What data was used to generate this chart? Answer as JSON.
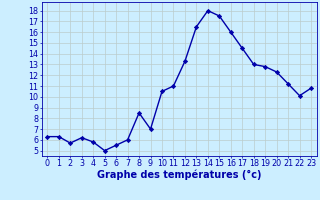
{
  "x": [
    0,
    1,
    2,
    3,
    4,
    5,
    6,
    7,
    8,
    9,
    10,
    11,
    12,
    13,
    14,
    15,
    16,
    17,
    18,
    19,
    20,
    21,
    22,
    23
  ],
  "y": [
    6.3,
    6.3,
    5.7,
    6.2,
    5.8,
    5.0,
    5.5,
    6.0,
    8.5,
    7.0,
    10.5,
    11.0,
    13.3,
    16.5,
    18.0,
    17.5,
    16.0,
    14.5,
    13.0,
    12.8,
    12.3,
    11.2,
    10.1,
    10.8
  ],
  "line_color": "#0000AA",
  "marker": "D",
  "marker_size": 2.2,
  "bg_color": "#cceeff",
  "grid_color": "#bbcccc",
  "xlabel": "Graphe des températures (°c)",
  "xlabel_color": "#0000AA",
  "xlabel_fontsize": 7,
  "ylabel_ticks": [
    5,
    6,
    7,
    8,
    9,
    10,
    11,
    12,
    13,
    14,
    15,
    16,
    17,
    18
  ],
  "xtick_labels": [
    "0",
    "1",
    "2",
    "3",
    "4",
    "5",
    "6",
    "7",
    "8",
    "9",
    "1011",
    "1213",
    "1415",
    "1617",
    "1819",
    "2021",
    "2223"
  ],
  "xticks": [
    0,
    1,
    2,
    3,
    4,
    5,
    6,
    7,
    8,
    9,
    10,
    11,
    12,
    13,
    14,
    15,
    16,
    17,
    18,
    19,
    20,
    21,
    22,
    23
  ],
  "xtick_labels_all": [
    "0",
    "1",
    "2",
    "3",
    "4",
    "5",
    "6",
    "7",
    "8",
    "9",
    "10",
    "11",
    "12",
    "13",
    "14",
    "15",
    "16",
    "17",
    "18",
    "19",
    "20",
    "21",
    "22",
    "23"
  ],
  "ylim": [
    4.5,
    18.8
  ],
  "xlim": [
    -0.5,
    23.5
  ],
  "tick_color": "#0000AA",
  "tick_fontsize": 5.8,
  "axis_color": "#0000AA",
  "line_width": 1.0
}
